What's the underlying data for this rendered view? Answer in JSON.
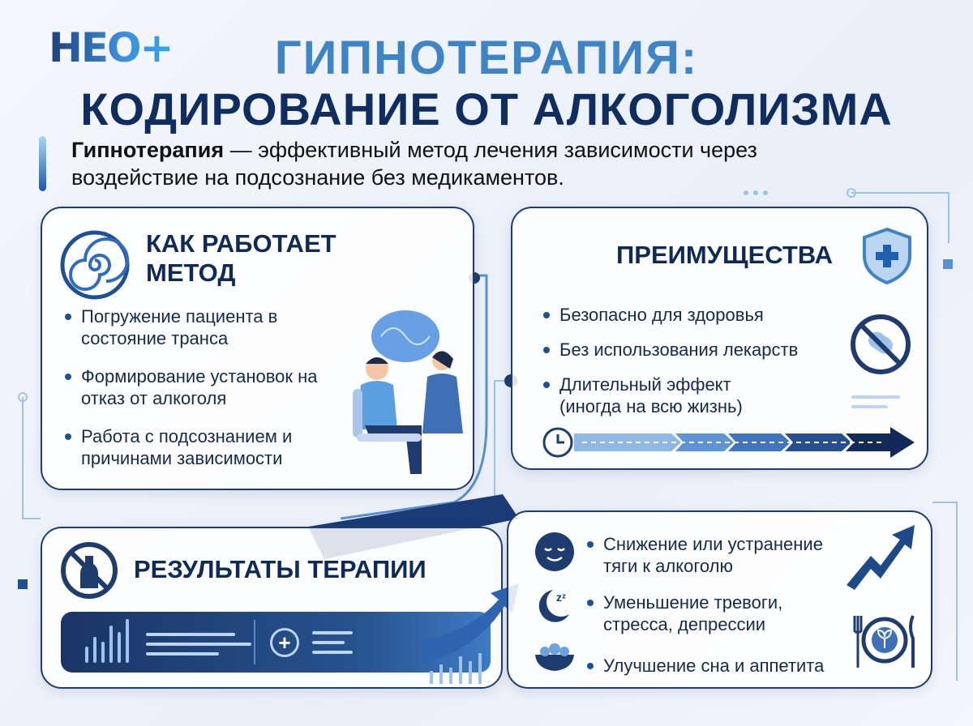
{
  "logo": {
    "text": "НЕО+"
  },
  "title": {
    "line1": "ГИПНОТЕРАПИЯ:",
    "line2": "КОДИРОВАНИЕ ОТ АЛКОГОЛИЗМА"
  },
  "intro": {
    "bold": "Гипнотерапия",
    "rest": " — эффективный метод лечения зависимости через воздействие на подсознание без медикаментов."
  },
  "method": {
    "title": "КАК РАБОТАЕТ МЕТОД",
    "icon": "spiral-icon",
    "items": [
      "Погружение пациента в состояние транса",
      "Формирование установок на отказ от алкоголя",
      "Работа с подсознанием и причинами зависимости"
    ]
  },
  "benefits": {
    "title": "ПРЕИМУЩЕСТВА",
    "icon": "shield-plus-icon",
    "items": [
      "Безопасно для здоровья",
      "Без использования лекарств",
      "Длительный эффект (иногда на всю жизнь)"
    ]
  },
  "results": {
    "title": "РЕЗУЛЬТАТЫ ТЕРАПИИ",
    "icon": "no-alcohol-icon",
    "items": [
      {
        "icon": "calm-face-icon",
        "text": "Снижение или устранение тяги к алкоголю"
      },
      {
        "icon": "moon-sleep-icon",
        "text": "Уменьшение тревоги, стресса, депрессии"
      },
      {
        "icon": "food-bowl-icon",
        "text": "Улучшение сна и аппетита"
      }
    ]
  },
  "colors": {
    "navy": "#0f2d5f",
    "accent": "#3f84c5"
  }
}
